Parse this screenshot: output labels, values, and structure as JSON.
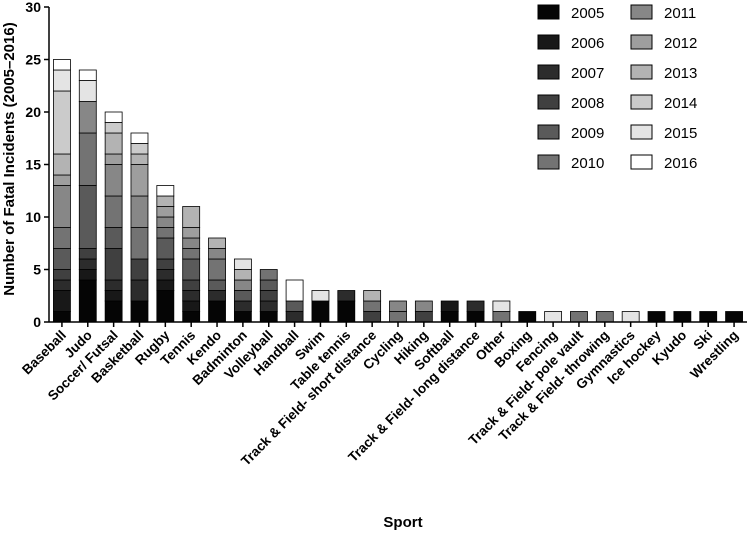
{
  "chart_data": {
    "type": "bar",
    "stacked": true,
    "xlabel": "Sport",
    "ylabel": "Number of Fatal Incidents (2005–2016)",
    "ylim": [
      0,
      30
    ],
    "yticks": [
      "0",
      "5",
      "10",
      "15",
      "20",
      "25",
      "30"
    ],
    "grid": false,
    "legend_position": "top-right",
    "categories": [
      "Baseball",
      "Judo",
      "Soccer/ Futsal",
      "Basketball",
      "Rugby",
      "Tennis",
      "Kendo",
      "Badminton",
      "Volleyball",
      "Handball",
      "Swim",
      "Table tennis",
      "Track & Field- short distance",
      "Cycling",
      "Hiking",
      "Softball",
      "Track & Field- long distance",
      "Other",
      "Boxing",
      "Fencing",
      "Track & Field- pole vault",
      "Track & Field- throwing",
      "Gymnastics",
      "Ice hockey",
      "Kyudo",
      "Ski",
      "Wrestling"
    ],
    "colors": [
      "#050505",
      "#181818",
      "#2c2c2c",
      "#404040",
      "#5a5a5a",
      "#737373",
      "#878787",
      "#9e9e9e",
      "#b3b3b3",
      "#cbcbcb",
      "#e4e4e4",
      "#ffffff"
    ],
    "series": [
      {
        "name": "2005",
        "values": [
          1,
          4,
          2,
          2,
          3,
          1,
          2,
          1,
          1,
          0,
          2,
          2,
          0,
          0,
          0,
          1,
          1,
          0,
          1,
          0,
          0,
          0,
          0,
          1,
          1,
          1,
          1
        ]
      },
      {
        "name": "2006",
        "values": [
          2,
          1,
          1,
          0,
          1,
          1,
          0,
          0,
          0,
          0,
          0,
          0,
          0,
          0,
          0,
          1,
          0,
          0,
          0,
          0,
          0,
          0,
          0,
          0,
          0,
          0,
          0
        ]
      },
      {
        "name": "2007",
        "values": [
          1,
          1,
          1,
          2,
          1,
          1,
          1,
          1,
          1,
          1,
          0,
          1,
          0,
          0,
          0,
          0,
          1,
          0,
          0,
          0,
          0,
          0,
          0,
          0,
          0,
          0,
          0
        ]
      },
      {
        "name": "2008",
        "values": [
          1,
          1,
          3,
          2,
          1,
          1,
          0,
          0,
          1,
          0,
          0,
          0,
          1,
          0,
          1,
          0,
          0,
          0,
          0,
          0,
          0,
          0,
          0,
          0,
          0,
          0,
          0
        ]
      },
      {
        "name": "2009",
        "values": [
          2,
          6,
          2,
          0,
          2,
          2,
          1,
          1,
          1,
          1,
          0,
          0,
          0,
          0,
          0,
          0,
          0,
          0,
          0,
          0,
          0,
          0,
          0,
          0,
          0,
          0,
          0
        ]
      },
      {
        "name": "2010",
        "values": [
          2,
          5,
          3,
          3,
          1,
          1,
          2,
          0,
          1,
          0,
          0,
          0,
          1,
          1,
          0,
          0,
          0,
          1,
          0,
          0,
          1,
          1,
          0,
          0,
          0,
          0,
          0
        ]
      },
      {
        "name": "2011",
        "values": [
          4,
          3,
          3,
          3,
          1,
          1,
          1,
          1,
          0,
          0,
          0,
          0,
          0,
          1,
          1,
          0,
          0,
          0,
          0,
          0,
          0,
          0,
          0,
          0,
          0,
          0,
          0
        ]
      },
      {
        "name": "2012",
        "values": [
          1,
          0,
          1,
          3,
          1,
          1,
          0,
          0,
          0,
          0,
          0,
          0,
          0,
          0,
          0,
          0,
          0,
          0,
          0,
          0,
          0,
          0,
          0,
          0,
          0,
          0,
          0
        ]
      },
      {
        "name": "2013",
        "values": [
          2,
          0,
          2,
          1,
          1,
          2,
          1,
          1,
          0,
          0,
          0,
          0,
          1,
          0,
          0,
          0,
          0,
          0,
          0,
          0,
          0,
          0,
          0,
          0,
          0,
          0,
          0
        ]
      },
      {
        "name": "2014",
        "values": [
          6,
          0,
          1,
          1,
          0,
          0,
          0,
          0,
          0,
          0,
          0,
          0,
          0,
          0,
          0,
          0,
          0,
          0,
          0,
          0,
          0,
          0,
          0,
          0,
          0,
          0,
          0
        ]
      },
      {
        "name": "2015",
        "values": [
          2,
          2,
          0,
          0,
          0,
          0,
          0,
          1,
          0,
          0,
          1,
          0,
          0,
          0,
          0,
          0,
          0,
          1,
          0,
          1,
          0,
          0,
          1,
          0,
          0,
          0,
          0
        ]
      },
      {
        "name": "2016",
        "values": [
          1,
          1,
          1,
          1,
          1,
          0,
          0,
          0,
          0,
          2,
          0,
          0,
          0,
          0,
          0,
          0,
          0,
          0,
          0,
          0,
          0,
          0,
          0,
          0,
          0,
          0,
          0
        ]
      }
    ]
  }
}
